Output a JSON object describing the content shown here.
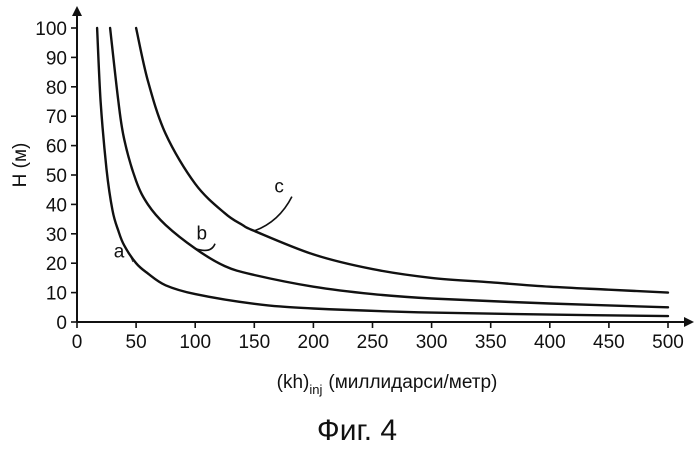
{
  "chart_data": {
    "type": "line",
    "title": "",
    "caption": "Фиг. 4",
    "xlabel_main": "(kh)",
    "xlabel_sub": "inj",
    "xlabel_units": "(миллидарси/метр)",
    "ylabel": "H (м)",
    "xlim": [
      0,
      500
    ],
    "ylim": [
      0,
      100
    ],
    "xticks": [
      0,
      50,
      100,
      150,
      200,
      250,
      300,
      350,
      400,
      450,
      500
    ],
    "yticks": [
      0,
      10,
      20,
      30,
      40,
      50,
      60,
      70,
      80,
      90,
      100
    ],
    "grid": false,
    "series": [
      {
        "name": "a",
        "x": [
          17,
          20,
          25,
          30,
          35,
          40,
          50,
          60,
          75,
          100,
          150,
          200,
          300,
          400,
          500
        ],
        "y": [
          100,
          75,
          52,
          38,
          31,
          26,
          20,
          16.5,
          12.5,
          9.5,
          6.2,
          4.6,
          3.2,
          2.5,
          2
        ]
      },
      {
        "name": "b",
        "x": [
          28,
          35,
          40,
          50,
          60,
          75,
          100,
          125,
          150,
          200,
          250,
          300,
          400,
          500
        ],
        "y": [
          100,
          75,
          62,
          48,
          40,
          33,
          25,
          19,
          16,
          12,
          9.5,
          8,
          6.3,
          5
        ]
      },
      {
        "name": "c",
        "x": [
          50,
          60,
          75,
          100,
          125,
          140,
          150,
          200,
          250,
          300,
          350,
          400,
          450,
          500
        ],
        "y": [
          100,
          82,
          64,
          47,
          37,
          33,
          31,
          23,
          18,
          15,
          13.5,
          12,
          11,
          10
        ]
      }
    ],
    "annotations": [
      {
        "text": "a",
        "x": 40,
        "y": 22
      },
      {
        "text": "b",
        "x": 110,
        "y": 28
      },
      {
        "text": "c",
        "x": 175,
        "y": 44
      }
    ]
  }
}
